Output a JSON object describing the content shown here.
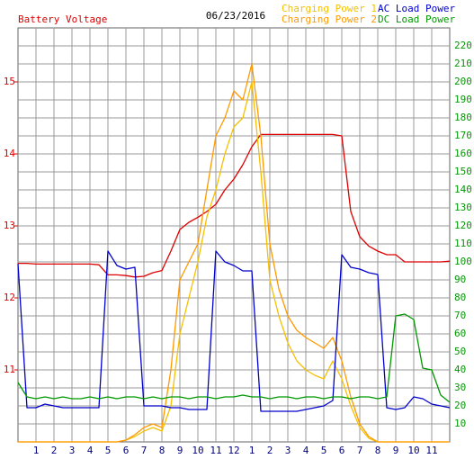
{
  "chart_data": {
    "type": "line",
    "title": "06/23/2016",
    "x": [
      0,
      0.5,
      1,
      1.5,
      2,
      2.5,
      3,
      3.5,
      4,
      4.5,
      5,
      5.5,
      6,
      6.5,
      7,
      7.5,
      8,
      8.5,
      9,
      9.5,
      10,
      10.5,
      11,
      11.5,
      12,
      12.5,
      13,
      13.5,
      14,
      14.5,
      15,
      15.5,
      16,
      16.5,
      17,
      17.5,
      18,
      18.5,
      19,
      19.5,
      20,
      20.5,
      21,
      21.5,
      22,
      22.5,
      23,
      23.5,
      24
    ],
    "xlim": [
      0,
      24
    ],
    "xticks": [
      1,
      2,
      3,
      4,
      5,
      6,
      7,
      8,
      9,
      10,
      11,
      12,
      {
        "value": 13,
        "label": "1"
      },
      {
        "value": 14,
        "label": "2"
      },
      {
        "value": 15,
        "label": "3"
      },
      {
        "value": 16,
        "label": "4"
      },
      {
        "value": 17,
        "label": "5"
      },
      {
        "value": 18,
        "label": "6"
      },
      {
        "value": 19,
        "label": "7"
      },
      {
        "value": 20,
        "label": "8"
      },
      {
        "value": 21,
        "label": "9"
      },
      {
        "value": 22,
        "label": "10"
      },
      {
        "value": 23,
        "label": "11"
      }
    ],
    "ylim": [
      10,
      15.75
    ],
    "yticks": [
      11,
      12,
      13,
      14,
      15
    ],
    "y2lim": [
      0,
      230
    ],
    "y2ticks": [
      10,
      20,
      30,
      40,
      50,
      60,
      70,
      80,
      90,
      100,
      110,
      120,
      130,
      140,
      150,
      160,
      170,
      180,
      190,
      200,
      210,
      220
    ],
    "grid": true,
    "series": [
      {
        "name": "Battery Voltage",
        "color": "#dd0000",
        "values": [
          12.48,
          12.48,
          12.47,
          12.47,
          12.47,
          12.47,
          12.47,
          12.47,
          12.47,
          12.46,
          12.32,
          12.32,
          12.31,
          12.29,
          12.3,
          12.35,
          12.38,
          12.65,
          12.95,
          13.05,
          13.12,
          13.2,
          13.3,
          13.5,
          13.65,
          13.85,
          14.1,
          14.27,
          14.27,
          14.27,
          14.27,
          14.27,
          14.27,
          14.27,
          14.27,
          14.27,
          14.25,
          13.2,
          12.85,
          12.72,
          12.65,
          12.6,
          12.6,
          12.5,
          12.5,
          12.5,
          12.5,
          12.5,
          12.51
        ]
      },
      {
        "name": "Charging Power 1",
        "color": "#f5c000",
        "axis": "y2",
        "values": [
          0,
          0,
          0,
          0,
          0,
          0,
          0,
          0,
          0,
          0,
          0,
          0,
          1,
          3,
          6,
          8,
          6,
          20,
          60,
          80,
          100,
          125,
          140,
          160,
          175,
          180,
          200,
          150,
          90,
          70,
          55,
          45,
          40,
          37,
          35,
          45,
          35,
          20,
          8,
          2,
          0,
          0,
          0,
          0,
          0,
          0,
          0,
          0,
          0
        ]
      },
      {
        "name": "Charging Power 2",
        "color": "#ff9900",
        "axis": "y2",
        "values": [
          0,
          0,
          0,
          0,
          0,
          0,
          0,
          0,
          0,
          0,
          0,
          0,
          1,
          4,
          8,
          10,
          8,
          40,
          90,
          100,
          110,
          140,
          170,
          180,
          195,
          190,
          210,
          170,
          110,
          85,
          70,
          62,
          58,
          55,
          52,
          58,
          45,
          25,
          10,
          3,
          0,
          0,
          0,
          0,
          0,
          0,
          0,
          0,
          0
        ]
      },
      {
        "name": "AC Load Power",
        "color": "#0000cc",
        "axis": "y2",
        "values": [
          99,
          19,
          19,
          21,
          20,
          19,
          19,
          19,
          19,
          19,
          106,
          98,
          96,
          97,
          20,
          20,
          20,
          19,
          19,
          18,
          18,
          18,
          106,
          100,
          98,
          95,
          95,
          17,
          17,
          17,
          17,
          17,
          18,
          19,
          20,
          23,
          104,
          97,
          96,
          94,
          93,
          19,
          18,
          19,
          25,
          24,
          21,
          20,
          19
        ]
      },
      {
        "name": "DC Load Power",
        "color": "#009900",
        "axis": "y2",
        "values": [
          33,
          25,
          24,
          25,
          24,
          25,
          24,
          24,
          25,
          24,
          25,
          24,
          25,
          25,
          24,
          25,
          24,
          25,
          25,
          24,
          25,
          25,
          24,
          25,
          25,
          26,
          25,
          25,
          24,
          25,
          25,
          24,
          25,
          25,
          24,
          25,
          25,
          24,
          25,
          25,
          24,
          25,
          70,
          71,
          68,
          41,
          40,
          26,
          22
        ]
      }
    ]
  }
}
